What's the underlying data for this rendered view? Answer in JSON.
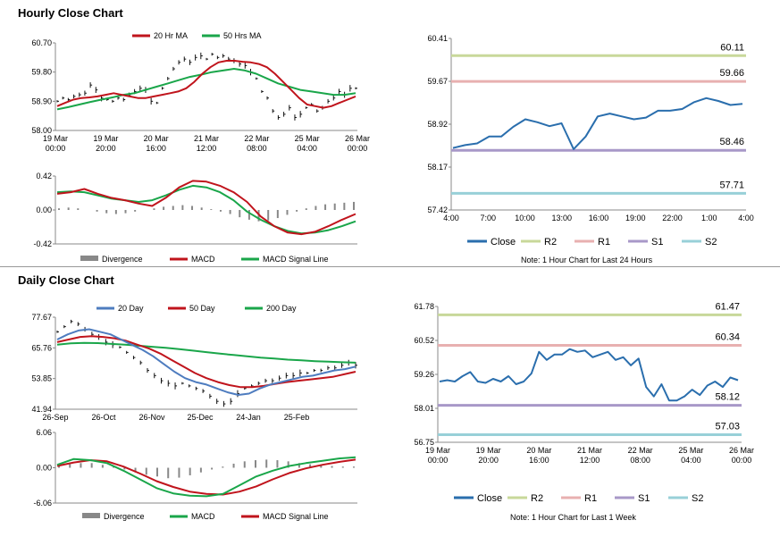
{
  "sections": {
    "hourly_title": "Hourly Close Chart",
    "daily_title": "Daily Close Chart"
  },
  "colors": {
    "red": "#c0141c",
    "green": "#1aa64a",
    "blue": "#4e7cbf",
    "line_blue": "#2a6ead",
    "r2": "#c8d89a",
    "r1": "#e8b0b0",
    "s1": "#a898c8",
    "s2": "#98d0d8",
    "divergence": "#888888",
    "price": "#111111"
  },
  "chart_data": [
    {
      "id": "hourly_price",
      "type": "line",
      "legend": [
        "20 Hr MA",
        "50 Hrs MA"
      ],
      "y_ticks": [
        "60.70",
        "59.80",
        "58.90",
        "58.00"
      ],
      "ylim": [
        58.0,
        60.7
      ],
      "x_ticks": [
        [
          "19 Mar",
          "00:00"
        ],
        [
          "19 Mar",
          "20:00"
        ],
        [
          "20 Mar",
          "16:00"
        ],
        [
          "21 Mar",
          "12:00"
        ],
        [
          "22 Mar",
          "08:00"
        ],
        [
          "25 Mar",
          "04:00"
        ],
        [
          "26 Mar",
          "00:00"
        ]
      ],
      "price": [
        58.9,
        59.0,
        58.95,
        59.05,
        59.1,
        59.15,
        59.4,
        59.25,
        59.0,
        58.95,
        58.9,
        59.0,
        58.95,
        59.1,
        59.2,
        59.3,
        59.25,
        58.9,
        58.85,
        59.3,
        59.6,
        59.9,
        60.1,
        60.2,
        60.1,
        60.25,
        60.3,
        60.2,
        60.35,
        60.25,
        60.3,
        60.2,
        60.15,
        60.05,
        60.0,
        59.8,
        59.6,
        59.2,
        59.0,
        58.6,
        58.4,
        58.5,
        58.7,
        58.4,
        58.5,
        58.7,
        58.8,
        58.6,
        58.7,
        58.9,
        59.0,
        59.2,
        59.1,
        59.3,
        59.3
      ],
      "series": [
        {
          "name": "20 Hr MA",
          "values": [
            58.75,
            58.85,
            58.95,
            59.0,
            59.02,
            59.05,
            59.1,
            59.15,
            59.1,
            59.05,
            59.0,
            59.0,
            59.05,
            59.1,
            59.15,
            59.2,
            59.3,
            59.5,
            59.75,
            59.95,
            60.1,
            60.15,
            60.15,
            60.12,
            60.1,
            60.05,
            59.95,
            59.75,
            59.5,
            59.25,
            59.0,
            58.8,
            58.75,
            58.7,
            58.75,
            58.85,
            58.95,
            59.05
          ]
        },
        {
          "name": "50 Hrs MA",
          "values": [
            58.65,
            58.72,
            58.8,
            58.88,
            58.95,
            59.02,
            59.1,
            59.15,
            59.25,
            59.35,
            59.45,
            59.55,
            59.65,
            59.72,
            59.8,
            59.85,
            59.9,
            59.85,
            59.75,
            59.6,
            59.45,
            59.35,
            59.25,
            59.2,
            59.15,
            59.1,
            59.1,
            59.15
          ]
        }
      ]
    },
    {
      "id": "hourly_macd",
      "type": "line",
      "legend": [
        "Divergence",
        "MACD",
        "MACD Signal Line"
      ],
      "y_ticks": [
        "0.42",
        "0.00",
        "-0.42"
      ],
      "ylim": [
        -0.42,
        0.42
      ],
      "divergence": [
        0.02,
        0.03,
        0.02,
        0.0,
        -0.02,
        -0.04,
        -0.05,
        -0.04,
        -0.02,
        0.0,
        0.02,
        0.04,
        0.05,
        0.06,
        0.05,
        0.03,
        0.01,
        -0.02,
        -0.05,
        -0.09,
        -0.12,
        -0.14,
        -0.13,
        -0.1,
        -0.06,
        -0.02,
        0.02,
        0.05,
        0.07,
        0.08,
        0.09,
        0.1
      ],
      "series": [
        {
          "name": "MACD",
          "values": [
            0.2,
            0.22,
            0.26,
            0.2,
            0.15,
            0.12,
            0.08,
            0.05,
            0.15,
            0.28,
            0.36,
            0.35,
            0.3,
            0.22,
            0.1,
            -0.08,
            -0.2,
            -0.28,
            -0.3,
            -0.27,
            -0.2,
            -0.12,
            -0.05
          ]
        },
        {
          "name": "MACD Signal Line",
          "values": [
            0.22,
            0.23,
            0.22,
            0.18,
            0.14,
            0.12,
            0.1,
            0.12,
            0.18,
            0.25,
            0.3,
            0.28,
            0.22,
            0.12,
            -0.02,
            -0.12,
            -0.2,
            -0.26,
            -0.29,
            -0.28,
            -0.25,
            -0.2,
            -0.14
          ]
        }
      ]
    },
    {
      "id": "hourly_levels",
      "type": "line",
      "y_ticks": [
        "60.41",
        "59.67",
        "58.92",
        "58.17",
        "57.42"
      ],
      "ylim": [
        57.42,
        60.41
      ],
      "x_ticks": [
        "4:00",
        "7:00",
        "10:00",
        "13:00",
        "16:00",
        "19:00",
        "22:00",
        "1:00",
        "4:00"
      ],
      "levels": [
        {
          "name": "R2",
          "value": 60.11,
          "label": "60.11"
        },
        {
          "name": "R1",
          "value": 59.66,
          "label": "59.66"
        },
        {
          "name": "S1",
          "value": 58.46,
          "label": "58.46"
        },
        {
          "name": "S2",
          "value": 57.71,
          "label": "57.71"
        }
      ],
      "close": [
        58.5,
        58.55,
        58.58,
        58.7,
        58.7,
        58.87,
        59.0,
        58.95,
        58.88,
        58.93,
        58.48,
        58.7,
        59.05,
        59.1,
        59.05,
        59.0,
        59.03,
        59.15,
        59.15,
        59.18,
        59.3,
        59.37,
        59.32,
        59.25,
        59.27
      ],
      "legend": [
        "Close",
        "R2",
        "R1",
        "S1",
        "S2"
      ],
      "note": "Note: 1 Hour Chart for Last 24 Hours"
    },
    {
      "id": "daily_price",
      "type": "line",
      "legend": [
        "20 Day",
        "50 Day",
        "200 Day"
      ],
      "y_ticks": [
        "77.67",
        "65.76",
        "53.85",
        "41.94"
      ],
      "ylim": [
        41.94,
        77.67
      ],
      "x_ticks": [
        "26-Sep",
        "26-Oct",
        "26-Nov",
        "25-Dec",
        "24-Jan",
        "25-Feb"
      ],
      "price": [
        72,
        74,
        76,
        75,
        73,
        71,
        70,
        68,
        67,
        66,
        64,
        62,
        60,
        57,
        55,
        53,
        52,
        51,
        52,
        51,
        50,
        49,
        47,
        45,
        44,
        45,
        48,
        50,
        51,
        52,
        53,
        53,
        54,
        55,
        55,
        56,
        56,
        57,
        57,
        58,
        58,
        59,
        60,
        59
      ],
      "series": [
        {
          "name": "20 Day",
          "values": [
            69,
            71,
            72.5,
            73,
            72,
            71,
            69,
            67,
            65,
            62.5,
            59.5,
            56.5,
            54,
            52.5,
            51.5,
            50,
            48.5,
            47.5,
            48,
            50,
            51.5,
            52.5,
            53.5,
            54.5,
            55,
            56,
            57,
            57.5,
            58.5
          ]
        },
        {
          "name": "50 Day",
          "values": [
            68,
            69,
            70,
            70.3,
            70,
            69.5,
            68.5,
            67,
            65.5,
            63.5,
            61,
            58.5,
            56,
            54,
            52.5,
            51.3,
            50.5,
            50.5,
            51,
            51.8,
            52.5,
            53,
            53.5,
            54,
            54.5,
            55.5,
            56.5
          ]
        },
        {
          "name": "200 Day",
          "values": [
            67,
            67.5,
            67.7,
            67.6,
            67.3,
            67,
            66.6,
            66.2,
            65.8,
            65.3,
            64.7,
            64.1,
            63.5,
            63,
            62.5,
            62,
            61.6,
            61.2,
            60.9,
            60.6,
            60.4,
            60.2,
            60
          ]
        }
      ]
    },
    {
      "id": "daily_macd",
      "type": "line",
      "legend": [
        "Divergence",
        "MACD",
        "MACD Signal Line"
      ],
      "y_ticks": [
        "6.06",
        "0.00",
        "-6.06"
      ],
      "ylim": [
        -6.06,
        6.06
      ],
      "divergence": [
        0.3,
        0.6,
        0.8,
        0.8,
        0.5,
        0.2,
        -0.3,
        -0.8,
        -1.2,
        -1.5,
        -1.8,
        -1.7,
        -1.3,
        -0.8,
        -0.3,
        0.2,
        0.7,
        1.1,
        1.3,
        1.4,
        1.3,
        1.1,
        0.8,
        0.6,
        0.4,
        0.3,
        0.2,
        0.2
      ],
      "series": [
        {
          "name": "MACD",
          "values": [
            0.5,
            1.5,
            1.3,
            0.8,
            -0.5,
            -2,
            -3.5,
            -4.4,
            -4.8,
            -4.9,
            -4.5,
            -3,
            -1.5,
            -0.5,
            0.3,
            0.8,
            1.2,
            1.6,
            1.8
          ]
        },
        {
          "name": "MACD Signal Line",
          "values": [
            0.3,
            0.9,
            1.3,
            1.1,
            0.2,
            -1,
            -2.3,
            -3.3,
            -4.1,
            -4.5,
            -4.6,
            -4.1,
            -3.2,
            -2,
            -0.9,
            -0.1,
            0.5,
            1,
            1.4
          ]
        }
      ]
    },
    {
      "id": "daily_levels",
      "type": "line",
      "y_ticks": [
        "61.78",
        "60.52",
        "59.26",
        "58.01",
        "56.75"
      ],
      "ylim": [
        56.75,
        61.78
      ],
      "x_ticks": [
        [
          "19 Mar",
          "00:00"
        ],
        [
          "19 Mar",
          "20:00"
        ],
        [
          "20 Mar",
          "16:00"
        ],
        [
          "21 Mar",
          "12:00"
        ],
        [
          "22 Mar",
          "08:00"
        ],
        [
          "25 Mar",
          "04:00"
        ],
        [
          "26 Mar",
          "00:00"
        ]
      ],
      "levels": [
        {
          "name": "R2",
          "value": 61.47,
          "label": "61.47"
        },
        {
          "name": "R1",
          "value": 60.34,
          "label": "60.34"
        },
        {
          "name": "S1",
          "value": 58.12,
          "label": "58.12"
        },
        {
          "name": "S2",
          "value": 57.03,
          "label": "57.03"
        }
      ],
      "close": [
        59.0,
        59.05,
        59.0,
        59.2,
        59.35,
        59.0,
        58.95,
        59.1,
        59.0,
        59.2,
        58.9,
        59.0,
        59.3,
        60.1,
        59.8,
        60.0,
        60.0,
        60.2,
        60.1,
        60.15,
        59.9,
        60.0,
        60.1,
        59.8,
        59.9,
        59.6,
        59.85,
        58.8,
        58.45,
        58.9,
        58.3,
        58.3,
        58.45,
        58.7,
        58.5,
        58.85,
        59.0,
        58.8,
        59.15,
        59.05
      ],
      "legend": [
        "Close",
        "R2",
        "R1",
        "S1",
        "S2"
      ],
      "note": "Note: 1 Hour Chart for Last 1 Week"
    }
  ]
}
